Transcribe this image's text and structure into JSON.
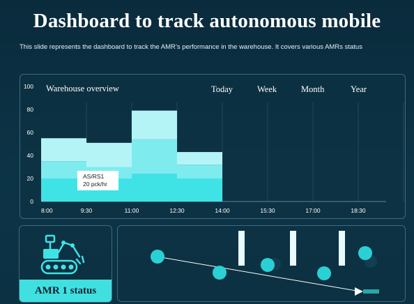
{
  "slide": {
    "title": "Dashboard to track autonomous mobile",
    "subtitle": "This slide represents the dashboard to track the AMR’s performance in the warehouse. It covers various AMRs status"
  },
  "overview": {
    "title": "Warehouse  overview",
    "tabs": [
      "Today",
      "Week",
      "Month",
      "Year"
    ]
  },
  "tooltip": {
    "line1": "AS/RS1",
    "line2": "20 pck/hr"
  },
  "amr": {
    "status_label": "AMR 1 status",
    "icon": "robot-rover-icon"
  },
  "colors": {
    "background": "#0b2f40",
    "accent": "#40e0e0",
    "bar_light": "#b5f4f6",
    "bar_mid": "#7eecef",
    "bar_dark": "#3fe3e6"
  },
  "chart_data": {
    "type": "bar",
    "stacked": true,
    "categories": [
      "8:00",
      "9:30",
      "11:00",
      "12:30"
    ],
    "x_ticks": [
      "8:00",
      "9:30",
      "11:00",
      "12:30",
      "14:00",
      "15:30",
      "17:00",
      "18:30"
    ],
    "series": [
      {
        "values": [
          20,
          20,
          24,
          20
        ]
      },
      {
        "values": [
          15,
          10,
          30,
          12
        ]
      },
      {
        "values": [
          20,
          21,
          25,
          11
        ]
      }
    ],
    "ylim": [
      0,
      100
    ],
    "y_ticks": [
      0,
      20,
      40,
      60,
      80,
      100
    ],
    "grid": "vertical"
  }
}
